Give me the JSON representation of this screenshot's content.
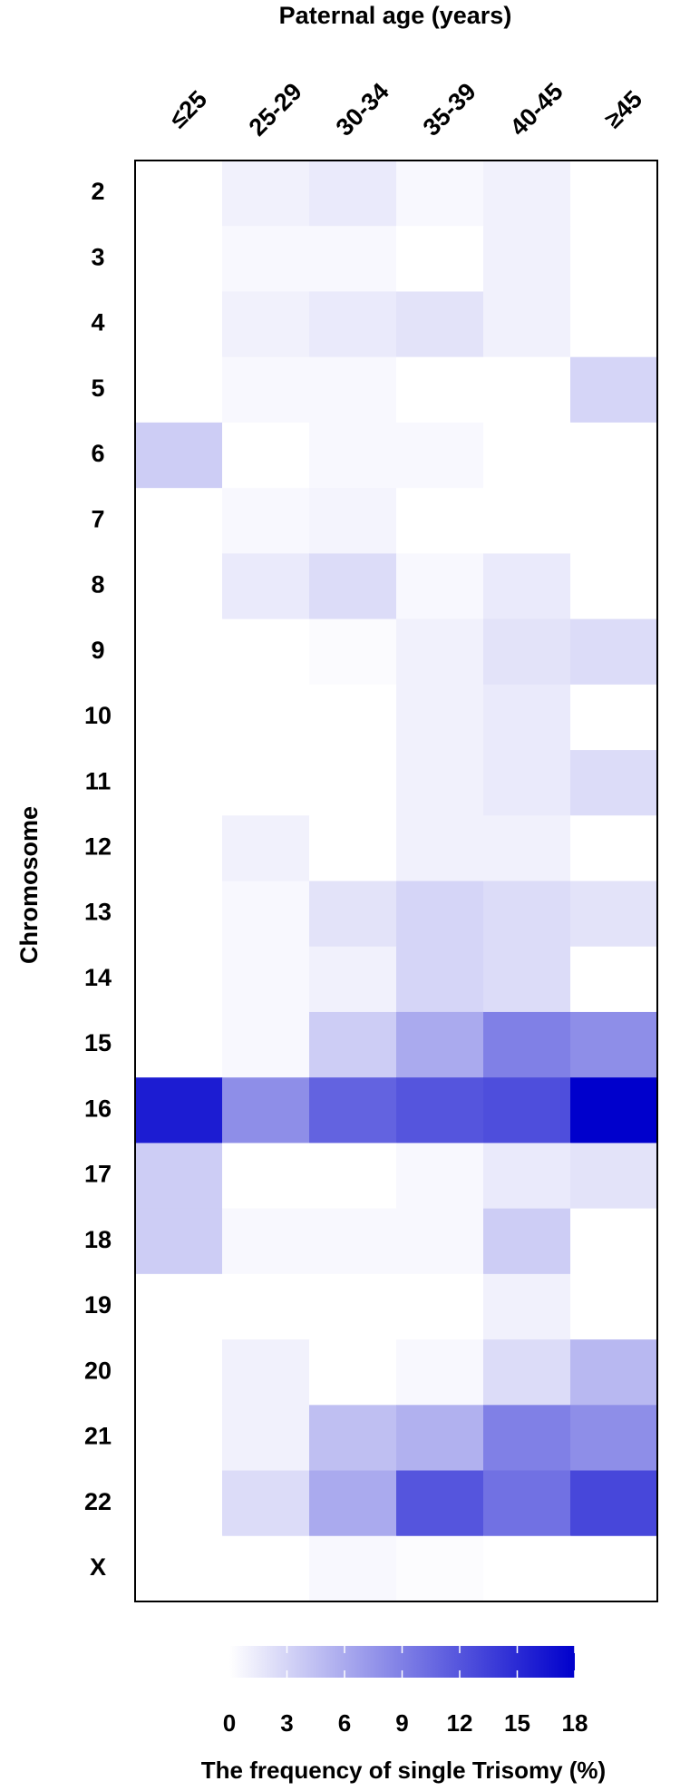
{
  "chart_data": {
    "type": "heatmap",
    "title": "Paternal age (years)",
    "y_label": "Chromosome",
    "colorbar_label": "The frequency of single Trisomy (%)",
    "x_categories": [
      "≤25",
      "25-29",
      "30-34",
      "35-39",
      "40-45",
      "≥45"
    ],
    "y_categories": [
      "2",
      "3",
      "4",
      "5",
      "6",
      "7",
      "8",
      "9",
      "10",
      "11",
      "12",
      "13",
      "14",
      "15",
      "16",
      "17",
      "18",
      "19",
      "20",
      "21",
      "22",
      "X"
    ],
    "values": [
      [
        0,
        1,
        1.5,
        0.5,
        1,
        0
      ],
      [
        0,
        0.5,
        0.5,
        0,
        1,
        0
      ],
      [
        0,
        1,
        1.5,
        2,
        1,
        0
      ],
      [
        0,
        0.5,
        0.5,
        0,
        0,
        3
      ],
      [
        3.5,
        0,
        0.5,
        0.5,
        0,
        0
      ],
      [
        0,
        0.5,
        0.8,
        0,
        0,
        0
      ],
      [
        0,
        1.5,
        2.5,
        0.5,
        1.5,
        0
      ],
      [
        0,
        0,
        0.3,
        1,
        2,
        2.5
      ],
      [
        0,
        0,
        0,
        1,
        1.5,
        0
      ],
      [
        0,
        0,
        0,
        1,
        1.5,
        2.5
      ],
      [
        0,
        1,
        0,
        1,
        1,
        0
      ],
      [
        0,
        0.5,
        2,
        3,
        2.5,
        2
      ],
      [
        0,
        0.5,
        1,
        3,
        2.5,
        0
      ],
      [
        0,
        0.5,
        3.5,
        6,
        9,
        8
      ],
      [
        16,
        8,
        11,
        12,
        12.5,
        18
      ],
      [
        3.5,
        0,
        0,
        0.5,
        1.5,
        2
      ],
      [
        3.5,
        0.5,
        0.5,
        0.5,
        3.5,
        0
      ],
      [
        0,
        0,
        0,
        0,
        1,
        0
      ],
      [
        0,
        1,
        0,
        0.5,
        2.5,
        5
      ],
      [
        0,
        1,
        4.5,
        5.5,
        9,
        8
      ],
      [
        0,
        2.5,
        6,
        12,
        10,
        13
      ],
      [
        0,
        0,
        0.5,
        0.2,
        0,
        0
      ]
    ],
    "color_low": "#ffffff",
    "color_high": "#0000cc",
    "clim": [
      0,
      18
    ],
    "colorbar_ticks": [
      0,
      3,
      6,
      9,
      12,
      15,
      18
    ]
  }
}
